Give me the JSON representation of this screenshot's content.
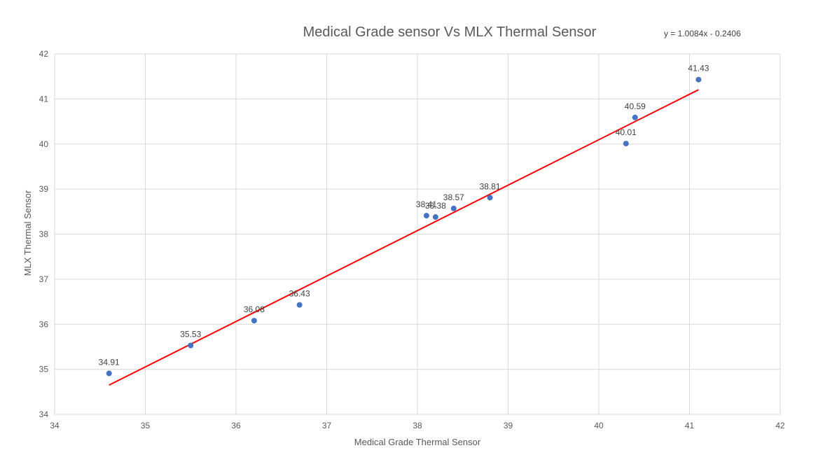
{
  "chart_data": {
    "type": "scatter",
    "title": "Medical Grade sensor Vs MLX Thermal Sensor",
    "xlabel": "Medical Grade Thermal Sensor",
    "ylabel": "MLX Thermal Sensor",
    "xlim": [
      34,
      42
    ],
    "ylim": [
      34,
      42
    ],
    "x_ticks": [
      "34",
      "35",
      "36",
      "37",
      "38",
      "39",
      "40",
      "41",
      "42"
    ],
    "y_ticks": [
      "34",
      "35",
      "36",
      "37",
      "38",
      "39",
      "40",
      "41",
      "42"
    ],
    "grid": true,
    "legend": "none",
    "point_color": "#4472C4",
    "trendline_color": "#FF0000",
    "series": [
      {
        "points": [
          {
            "x": 34.6,
            "y": 34.91,
            "label": "34.91"
          },
          {
            "x": 35.5,
            "y": 35.53,
            "label": "35.53"
          },
          {
            "x": 36.2,
            "y": 36.08,
            "label": "36.08"
          },
          {
            "x": 36.7,
            "y": 36.43,
            "label": "36.43"
          },
          {
            "x": 38.1,
            "y": 38.41,
            "label": "38.41"
          },
          {
            "x": 38.2,
            "y": 38.38,
            "label": "38.38"
          },
          {
            "x": 38.4,
            "y": 38.57,
            "label": "38.57"
          },
          {
            "x": 38.8,
            "y": 38.81,
            "label": "38.81"
          },
          {
            "x": 40.3,
            "y": 40.01,
            "label": "40.01"
          },
          {
            "x": 40.4,
            "y": 40.59,
            "label": "40.59"
          },
          {
            "x": 41.1,
            "y": 41.43,
            "label": "41.43"
          }
        ]
      }
    ],
    "trendline": {
      "slope": 1.0084,
      "intercept": -0.2406,
      "x_range": [
        34.6,
        41.1
      ],
      "equation_label": "y = 1.0084x - 0.2406"
    }
  }
}
